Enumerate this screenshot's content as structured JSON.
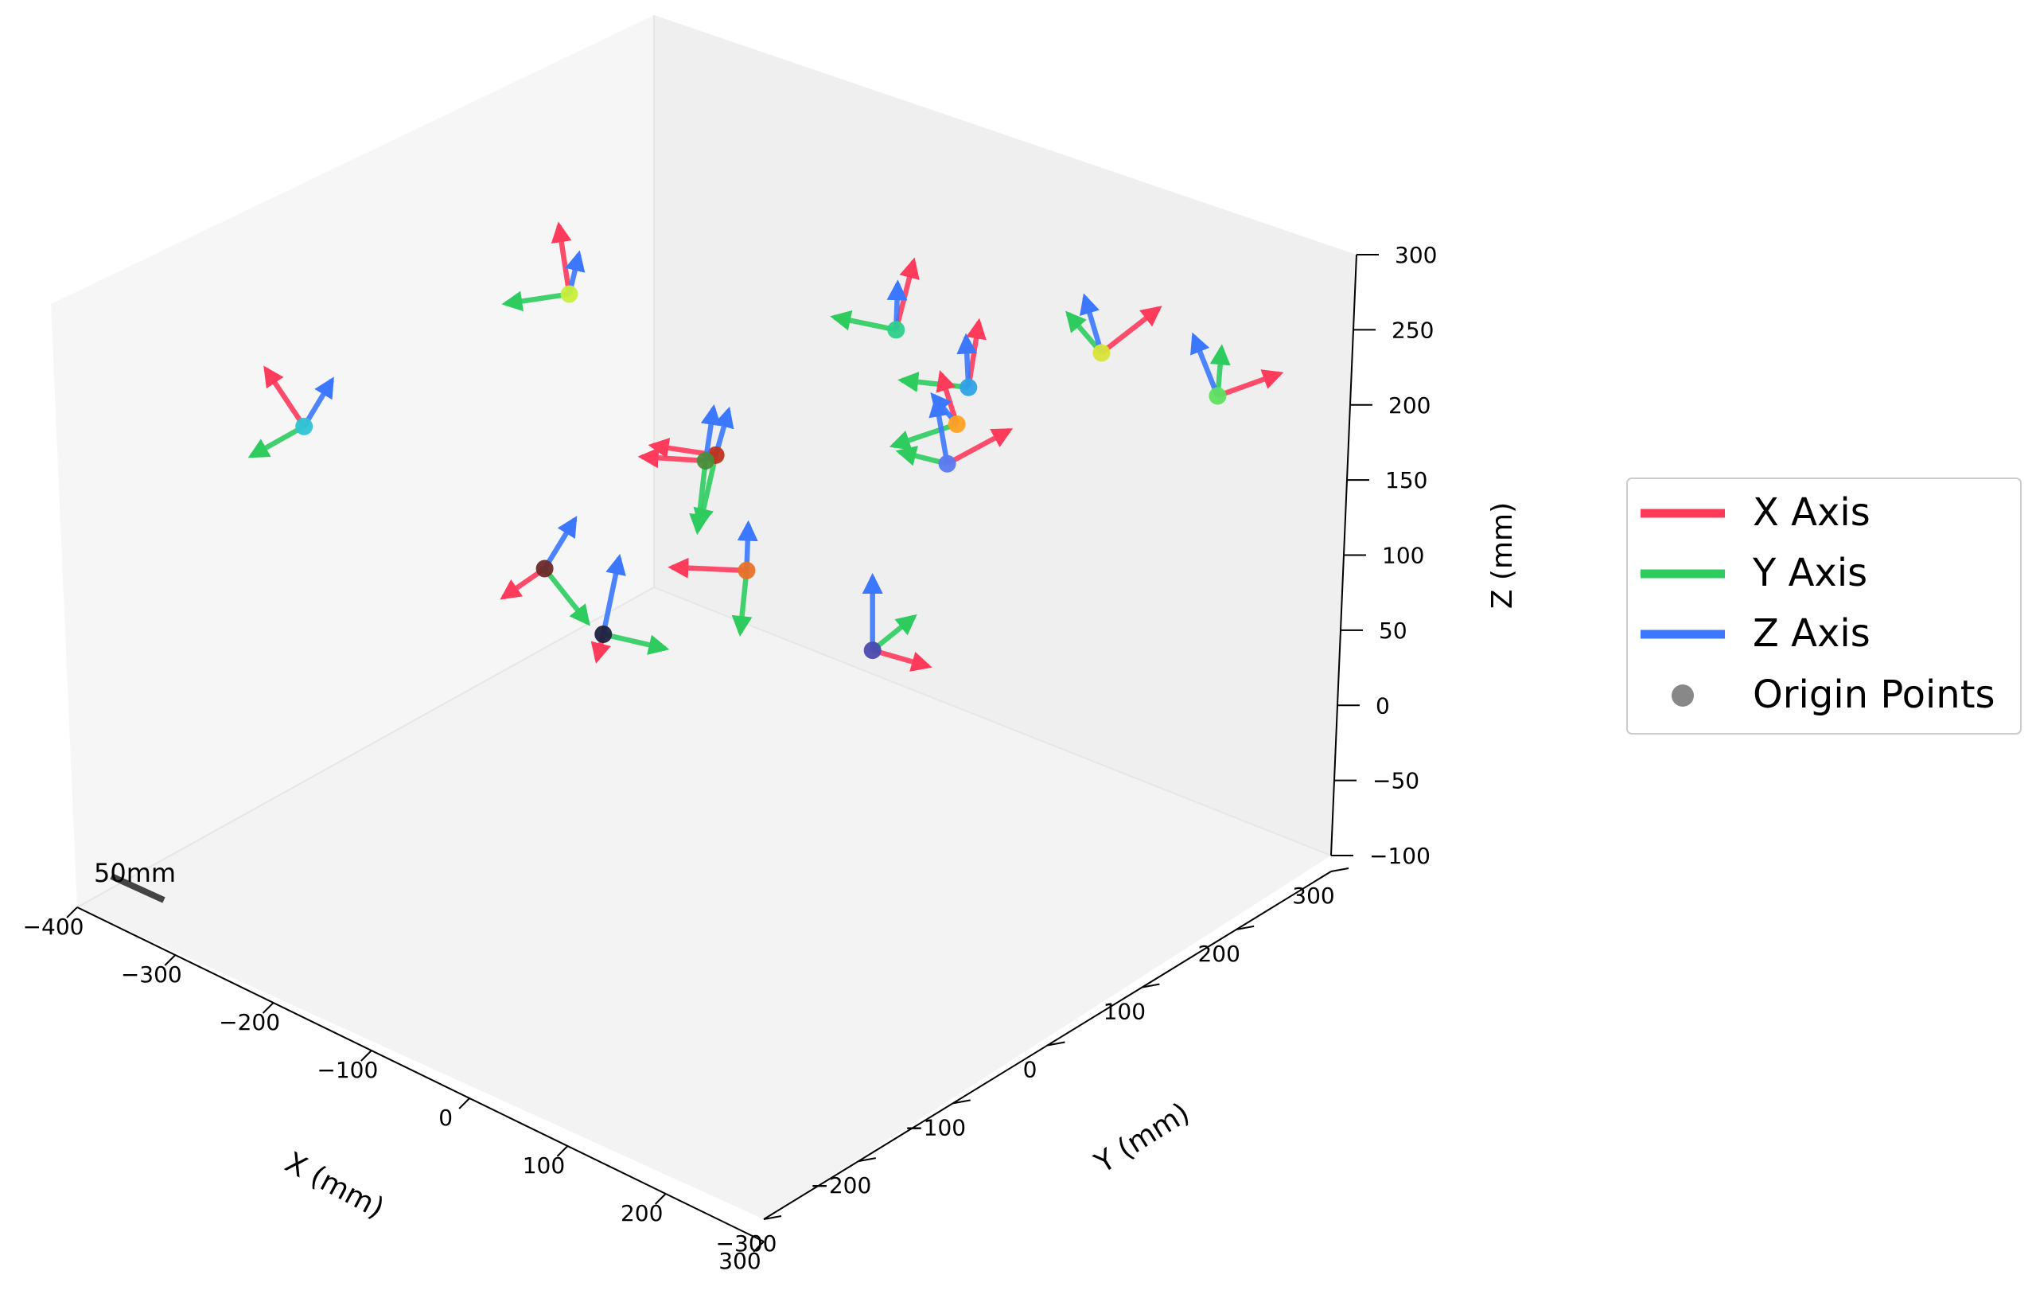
{
  "chart_data": {
    "type": "scatter",
    "projection": "3d",
    "title": "",
    "xlabel": "X (mm)",
    "ylabel": "Y (mm)",
    "zlabel": "Z (mm)",
    "xlim": [
      -400,
      300
    ],
    "ylim": [
      -300,
      300
    ],
    "zlim": [
      -100,
      300
    ],
    "x_ticks": [
      "−400",
      "−300",
      "−200",
      "−100",
      "0",
      "100",
      "200",
      "300"
    ],
    "y_ticks": [
      "−300",
      "−200",
      "−100",
      "0",
      "100",
      "200",
      "300"
    ],
    "z_ticks": [
      "−100",
      "−50",
      "0",
      "50",
      "100",
      "150",
      "200",
      "250",
      "300"
    ],
    "grid": false,
    "legend_position": "right",
    "legend": [
      {
        "label": "X Axis",
        "kind": "line",
        "color": "#ff3b5c"
      },
      {
        "label": "Y Axis",
        "kind": "line",
        "color": "#2ecc5f"
      },
      {
        "label": "Z Axis",
        "kind": "line",
        "color": "#3b78ff"
      },
      {
        "label": "Origin Points",
        "kind": "dot",
        "color": "#888888"
      }
    ],
    "scale_bar_label": "50mm",
    "colors": {
      "x_axis": "#ff3b5c",
      "y_axis": "#2ecc5f",
      "z_axis": "#3b78ff",
      "pane": "#f2f2f2"
    },
    "frames": [
      {
        "origin": [
          -68,
          -147,
          244
        ],
        "color": "#c8ef3a"
      },
      {
        "origin": [
          -211,
          -259,
          153
        ],
        "color": "#2ec4d6"
      },
      {
        "origin": [
          98,
          0,
          210
        ],
        "color": "#2ecf8a"
      },
      {
        "origin": [
          88,
          74,
          134
        ],
        "color": "#2fa2e6"
      },
      {
        "origin": [
          108,
          176,
          120
        ],
        "color": "#d8e43a"
      },
      {
        "origin": [
          48,
          99,
          84
        ],
        "color": "#ffa020"
      },
      {
        "origin": [
          45,
          93,
          58
        ],
        "color": "#5a7af0"
      },
      {
        "origin": [
          130,
          261,
          60
        ],
        "color": "#5ee060"
      },
      {
        "origin": [
          -40,
          -40,
          94
        ],
        "color": "#c0301e"
      },
      {
        "origin": [
          -47,
          -43,
          89
        ],
        "color": "#4a8c3a"
      },
      {
        "origin": [
          -93,
          -147,
          44
        ],
        "color": "#6a2a28"
      },
      {
        "origin": [
          -3,
          -45,
          28
        ],
        "color": "#e8702a"
      },
      {
        "origin": [
          -82,
          -104,
          -17
        ],
        "color": "#202040"
      },
      {
        "origin": [
          82,
          -7,
          -16
        ],
        "color": "#4a4ab0"
      }
    ]
  }
}
